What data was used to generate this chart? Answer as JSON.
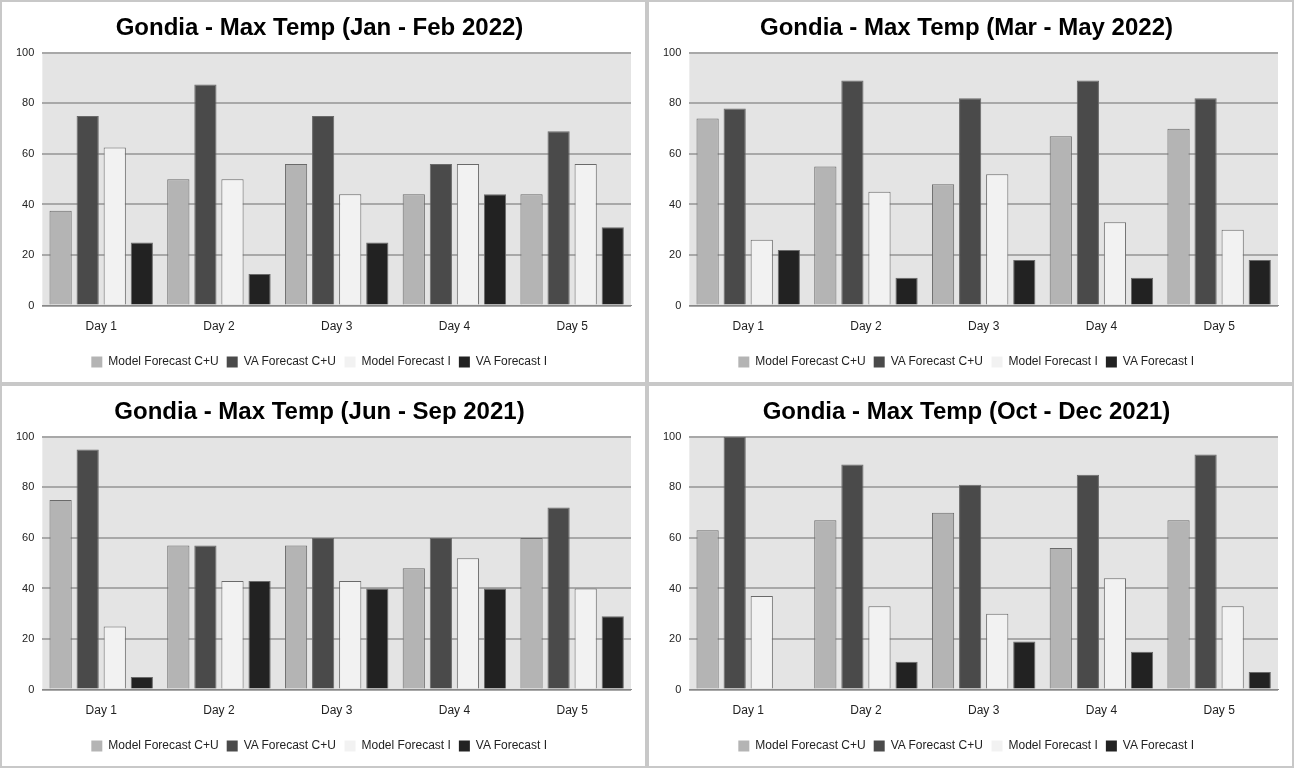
{
  "chart_data": [
    {
      "type": "bar",
      "title": "Gondia - Max Temp (Jan - Feb 2022)",
      "categories": [
        "Day 1",
        "Day 2",
        "Day 3",
        "Day 4",
        "Day 5"
      ],
      "ylim": [
        0,
        100
      ],
      "yticks": [
        0,
        20,
        40,
        60,
        80,
        100
      ],
      "grid": "y",
      "legend": "bottom",
      "series": [
        {
          "name": "Model Forecast C+U",
          "color": "#b4b4b4",
          "values": [
            37.5,
            50,
            56,
            44,
            44
          ]
        },
        {
          "name": "VA Forecast C+U",
          "color": "#4a4a4a",
          "values": [
            75,
            87.5,
            75,
            56,
            69
          ]
        },
        {
          "name": "Model Forecast I",
          "color": "#f2f2f2",
          "values": [
            62.5,
            50,
            44,
            56,
            56
          ]
        },
        {
          "name": "VA Forecast I",
          "color": "#222222",
          "values": [
            25,
            12.5,
            25,
            44,
            31
          ]
        }
      ]
    },
    {
      "type": "bar",
      "title": "Gondia - Max Temp (Mar - May 2022)",
      "categories": [
        "Day 1",
        "Day 2",
        "Day 3",
        "Day 4",
        "Day 5"
      ],
      "ylim": [
        0,
        100
      ],
      "yticks": [
        0,
        20,
        40,
        60,
        80,
        100
      ],
      "grid": "y",
      "legend": "bottom",
      "series": [
        {
          "name": "Model Forecast C+U",
          "color": "#b4b4b4",
          "values": [
            74,
            55,
            48,
            67,
            70
          ]
        },
        {
          "name": "VA Forecast C+U",
          "color": "#4a4a4a",
          "values": [
            78,
            89,
            82,
            89,
            82
          ]
        },
        {
          "name": "Model Forecast I",
          "color": "#f2f2f2",
          "values": [
            26,
            45,
            52,
            33,
            30
          ]
        },
        {
          "name": "VA Forecast I",
          "color": "#222222",
          "values": [
            22,
            11,
            18,
            11,
            18
          ]
        }
      ]
    },
    {
      "type": "bar",
      "title": "Gondia - Max Temp (Jun - Sep 2021)",
      "categories": [
        "Day 1",
        "Day 2",
        "Day 3",
        "Day 4",
        "Day 5"
      ],
      "ylim": [
        0,
        100
      ],
      "yticks": [
        0,
        20,
        40,
        60,
        80,
        100
      ],
      "grid": "y",
      "legend": "bottom",
      "series": [
        {
          "name": "Model Forecast C+U",
          "color": "#b4b4b4",
          "values": [
            75,
            57,
            57,
            48,
            60
          ]
        },
        {
          "name": "VA Forecast C+U",
          "color": "#4a4a4a",
          "values": [
            95,
            57,
            60,
            60,
            72
          ]
        },
        {
          "name": "Model Forecast I",
          "color": "#f2f2f2",
          "values": [
            25,
            43,
            43,
            52,
            40
          ]
        },
        {
          "name": "VA Forecast I",
          "color": "#222222",
          "values": [
            5,
            43,
            40,
            40,
            29
          ]
        }
      ]
    },
    {
      "type": "bar",
      "title": "Gondia - Max Temp (Oct - Dec 2021)",
      "categories": [
        "Day 1",
        "Day 2",
        "Day 3",
        "Day 4",
        "Day 5"
      ],
      "ylim": [
        0,
        100
      ],
      "yticks": [
        0,
        20,
        40,
        60,
        80,
        100
      ],
      "grid": "y",
      "legend": "bottom",
      "series": [
        {
          "name": "Model Forecast C+U",
          "color": "#b4b4b4",
          "values": [
            63,
            67,
            70,
            56,
            67
          ]
        },
        {
          "name": "VA Forecast C+U",
          "color": "#4a4a4a",
          "values": [
            100,
            89,
            81,
            85,
            93
          ]
        },
        {
          "name": "Model Forecast I",
          "color": "#f2f2f2",
          "values": [
            37,
            33,
            30,
            44,
            33
          ]
        },
        {
          "name": "VA Forecast I",
          "color": "#222222",
          "values": [
            0,
            11,
            19,
            15,
            7
          ]
        }
      ]
    }
  ]
}
